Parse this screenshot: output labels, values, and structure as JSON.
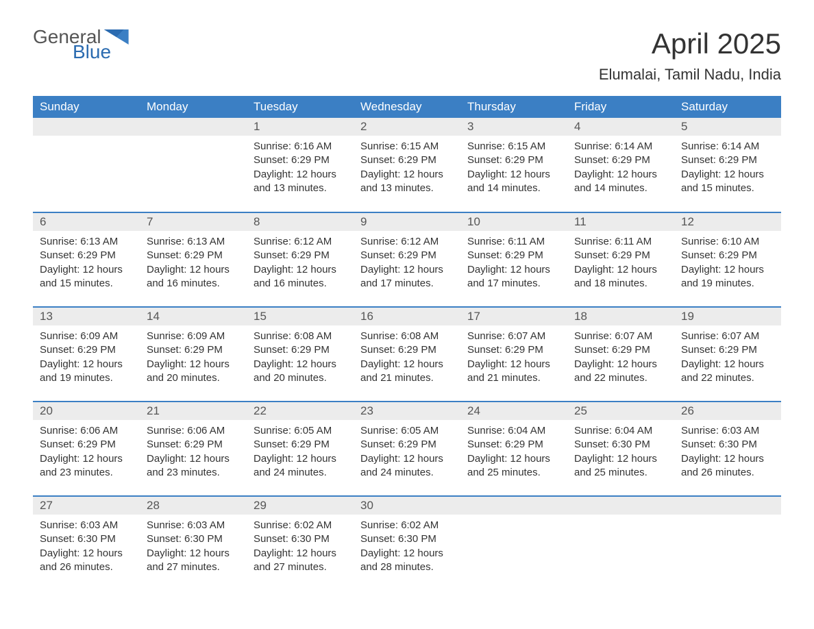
{
  "brand": {
    "word1": "General",
    "word2": "Blue"
  },
  "title": "April 2025",
  "location": "Elumalai, Tamil Nadu, India",
  "colors": {
    "header_bg": "#3b7fc4",
    "header_text": "#ffffff",
    "daynum_bg": "#ececec",
    "cell_border": "#3b7fc4",
    "text": "#333333",
    "brand_gray": "#555555",
    "brand_blue": "#2b6bb0",
    "page_bg": "#ffffff"
  },
  "layout": {
    "columns": 7,
    "rows": 5,
    "first_weekday_index": 2,
    "days_in_month": 30
  },
  "weekdays": [
    "Sunday",
    "Monday",
    "Tuesday",
    "Wednesday",
    "Thursday",
    "Friday",
    "Saturday"
  ],
  "labels": {
    "sunrise": "Sunrise:",
    "sunset": "Sunset:",
    "daylight": "Daylight:"
  },
  "days": [
    {
      "n": 1,
      "sunrise": "6:16 AM",
      "sunset": "6:29 PM",
      "daylight": "12 hours and 13 minutes."
    },
    {
      "n": 2,
      "sunrise": "6:15 AM",
      "sunset": "6:29 PM",
      "daylight": "12 hours and 13 minutes."
    },
    {
      "n": 3,
      "sunrise": "6:15 AM",
      "sunset": "6:29 PM",
      "daylight": "12 hours and 14 minutes."
    },
    {
      "n": 4,
      "sunrise": "6:14 AM",
      "sunset": "6:29 PM",
      "daylight": "12 hours and 14 minutes."
    },
    {
      "n": 5,
      "sunrise": "6:14 AM",
      "sunset": "6:29 PM",
      "daylight": "12 hours and 15 minutes."
    },
    {
      "n": 6,
      "sunrise": "6:13 AM",
      "sunset": "6:29 PM",
      "daylight": "12 hours and 15 minutes."
    },
    {
      "n": 7,
      "sunrise": "6:13 AM",
      "sunset": "6:29 PM",
      "daylight": "12 hours and 16 minutes."
    },
    {
      "n": 8,
      "sunrise": "6:12 AM",
      "sunset": "6:29 PM",
      "daylight": "12 hours and 16 minutes."
    },
    {
      "n": 9,
      "sunrise": "6:12 AM",
      "sunset": "6:29 PM",
      "daylight": "12 hours and 17 minutes."
    },
    {
      "n": 10,
      "sunrise": "6:11 AM",
      "sunset": "6:29 PM",
      "daylight": "12 hours and 17 minutes."
    },
    {
      "n": 11,
      "sunrise": "6:11 AM",
      "sunset": "6:29 PM",
      "daylight": "12 hours and 18 minutes."
    },
    {
      "n": 12,
      "sunrise": "6:10 AM",
      "sunset": "6:29 PM",
      "daylight": "12 hours and 19 minutes."
    },
    {
      "n": 13,
      "sunrise": "6:09 AM",
      "sunset": "6:29 PM",
      "daylight": "12 hours and 19 minutes."
    },
    {
      "n": 14,
      "sunrise": "6:09 AM",
      "sunset": "6:29 PM",
      "daylight": "12 hours and 20 minutes."
    },
    {
      "n": 15,
      "sunrise": "6:08 AM",
      "sunset": "6:29 PM",
      "daylight": "12 hours and 20 minutes."
    },
    {
      "n": 16,
      "sunrise": "6:08 AM",
      "sunset": "6:29 PM",
      "daylight": "12 hours and 21 minutes."
    },
    {
      "n": 17,
      "sunrise": "6:07 AM",
      "sunset": "6:29 PM",
      "daylight": "12 hours and 21 minutes."
    },
    {
      "n": 18,
      "sunrise": "6:07 AM",
      "sunset": "6:29 PM",
      "daylight": "12 hours and 22 minutes."
    },
    {
      "n": 19,
      "sunrise": "6:07 AM",
      "sunset": "6:29 PM",
      "daylight": "12 hours and 22 minutes."
    },
    {
      "n": 20,
      "sunrise": "6:06 AM",
      "sunset": "6:29 PM",
      "daylight": "12 hours and 23 minutes."
    },
    {
      "n": 21,
      "sunrise": "6:06 AM",
      "sunset": "6:29 PM",
      "daylight": "12 hours and 23 minutes."
    },
    {
      "n": 22,
      "sunrise": "6:05 AM",
      "sunset": "6:29 PM",
      "daylight": "12 hours and 24 minutes."
    },
    {
      "n": 23,
      "sunrise": "6:05 AM",
      "sunset": "6:29 PM",
      "daylight": "12 hours and 24 minutes."
    },
    {
      "n": 24,
      "sunrise": "6:04 AM",
      "sunset": "6:29 PM",
      "daylight": "12 hours and 25 minutes."
    },
    {
      "n": 25,
      "sunrise": "6:04 AM",
      "sunset": "6:30 PM",
      "daylight": "12 hours and 25 minutes."
    },
    {
      "n": 26,
      "sunrise": "6:03 AM",
      "sunset": "6:30 PM",
      "daylight": "12 hours and 26 minutes."
    },
    {
      "n": 27,
      "sunrise": "6:03 AM",
      "sunset": "6:30 PM",
      "daylight": "12 hours and 26 minutes."
    },
    {
      "n": 28,
      "sunrise": "6:03 AM",
      "sunset": "6:30 PM",
      "daylight": "12 hours and 27 minutes."
    },
    {
      "n": 29,
      "sunrise": "6:02 AM",
      "sunset": "6:30 PM",
      "daylight": "12 hours and 27 minutes."
    },
    {
      "n": 30,
      "sunrise": "6:02 AM",
      "sunset": "6:30 PM",
      "daylight": "12 hours and 28 minutes."
    }
  ]
}
